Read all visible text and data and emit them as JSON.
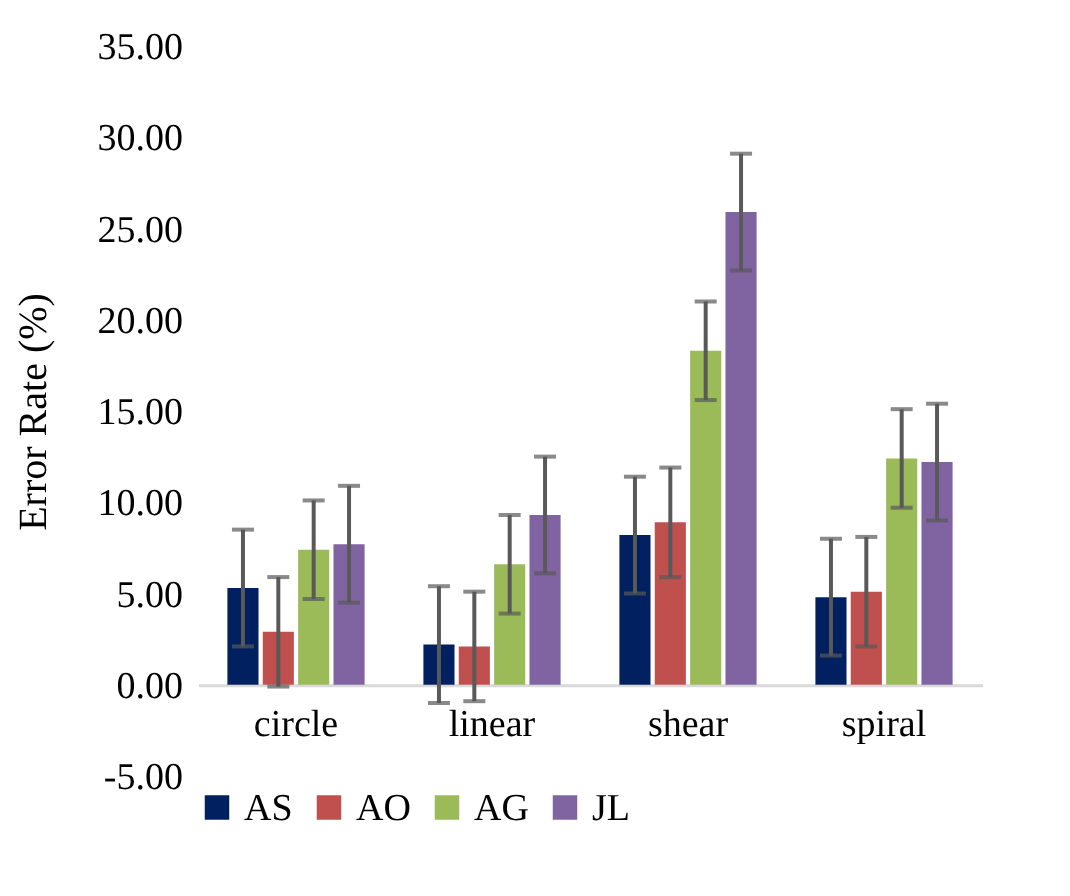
{
  "chart_data": {
    "type": "bar",
    "ylabel": "Error Rate (%)",
    "categories": [
      "circle",
      "linear",
      "shear",
      "spiral"
    ],
    "series": [
      {
        "name": "AS",
        "color": "#002060",
        "values": [
          5.3,
          2.2,
          8.2,
          4.8
        ],
        "errors": [
          3.2,
          3.2,
          3.2,
          3.2
        ]
      },
      {
        "name": "AO",
        "color": "#c0504d",
        "values": [
          2.9,
          2.1,
          8.9,
          5.1
        ],
        "errors": [
          3.0,
          3.0,
          3.0,
          3.0
        ]
      },
      {
        "name": "AG",
        "color": "#9bbb59",
        "values": [
          7.4,
          6.6,
          18.3,
          12.4
        ],
        "errors": [
          2.7,
          2.7,
          2.7,
          2.7
        ]
      },
      {
        "name": "JL",
        "color": "#8064a2",
        "values": [
          7.7,
          9.3,
          25.9,
          12.2
        ],
        "errors": [
          3.2,
          3.2,
          3.2,
          3.2
        ]
      }
    ],
    "ylim": [
      -5,
      35
    ],
    "yticks": [
      {
        "value": -5,
        "label": "-5.00"
      },
      {
        "value": 0,
        "label": "0.00"
      },
      {
        "value": 5,
        "label": "5.00"
      },
      {
        "value": 10,
        "label": "10.00"
      },
      {
        "value": 15,
        "label": "15.00"
      },
      {
        "value": 20,
        "label": "20.00"
      },
      {
        "value": 25,
        "label": "25.00"
      },
      {
        "value": 30,
        "label": "30.00"
      },
      {
        "value": 35,
        "label": "35.00"
      }
    ],
    "grid": false,
    "legend": "bottom"
  }
}
